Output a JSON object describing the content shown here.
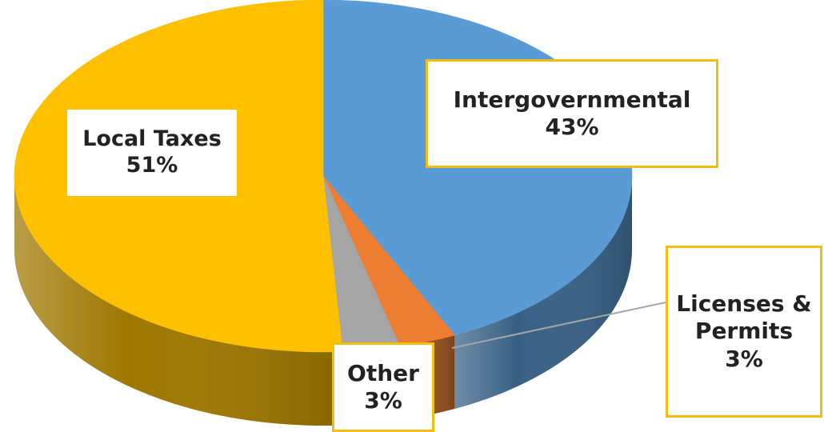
{
  "chart_data": {
    "type": "pie",
    "title": "",
    "categories": [
      "Intergovernmental",
      "Licenses & Permits",
      "Other",
      "Local Taxes"
    ],
    "values": [
      43,
      3,
      3,
      51
    ],
    "value_labels": [
      "43%",
      "3%",
      "3%",
      "51%"
    ],
    "label_lines": {
      "intergovernmental": [
        "Intergovernmental",
        "43%"
      ],
      "licenses": [
        "Licenses &",
        "Permits",
        "3%"
      ],
      "other": [
        "Other",
        "3%"
      ],
      "local_taxes": [
        "Local Taxes",
        "51%"
      ]
    },
    "colors": [
      "#5b9bd5",
      "#ed7d31",
      "#a5a5a5",
      "#ffc000"
    ],
    "style": "3d",
    "legend": "none"
  }
}
